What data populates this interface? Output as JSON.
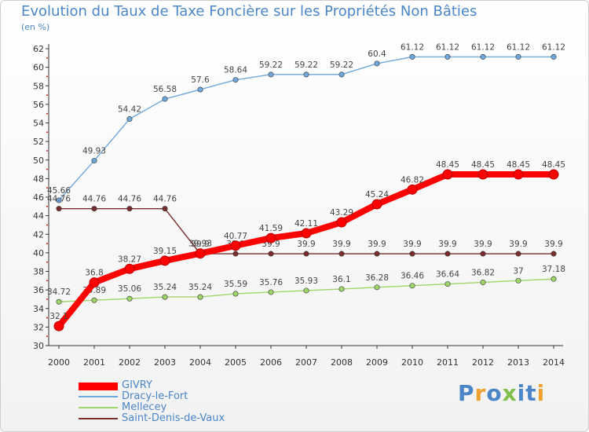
{
  "header": {
    "title": "Evolution du Taux de Taxe Foncière sur les Propriétés Non Bâties",
    "unit": "(en %)"
  },
  "logo": {
    "text": "Proxiti"
  },
  "chart_data": {
    "type": "line",
    "title": "Evolution du Taux de Taxe Foncière sur les Propriétés Non Bâties",
    "ylabel": "(en %)",
    "xlabel": "",
    "x": [
      "2000",
      "2001",
      "2002",
      "2003",
      "2004",
      "2005",
      "2006",
      "2007",
      "2008",
      "2009",
      "2010",
      "2011",
      "2012",
      "2013",
      "2014"
    ],
    "ylim": [
      30,
      62
    ],
    "yticks": [
      30,
      32,
      34,
      36,
      38,
      40,
      42,
      44,
      46,
      48,
      50,
      52,
      54,
      56,
      58,
      60,
      62
    ],
    "grid": false,
    "legend_position": "bottom-left",
    "series": [
      {
        "name": "GIVRY",
        "color": "#ff0000",
        "values": [
          32.1,
          36.8,
          38.27,
          39.15,
          39.93,
          40.77,
          41.59,
          42.11,
          43.29,
          45.24,
          46.82,
          48.45,
          48.45,
          48.45,
          48.45
        ],
        "labels": [
          "32.1",
          "36.8",
          "38.27",
          "39.15",
          "39.93",
          "40.77",
          "41.59",
          "42.11",
          "43.29",
          "45.24",
          "46.82",
          "48.45",
          "48.45",
          "48.45",
          "48.45"
        ]
      },
      {
        "name": "Dracy-le-Fort",
        "color": "#6fa8dc",
        "values": [
          45.66,
          49.93,
          54.42,
          56.58,
          57.6,
          58.64,
          59.22,
          59.22,
          59.22,
          60.4,
          61.12,
          61.12,
          61.12,
          61.12,
          61.12
        ],
        "labels": [
          "45.66",
          "49.93",
          "54.42",
          "56.58",
          "57.6",
          "58.64",
          "59.22",
          "59.22",
          "59.22",
          "60.4",
          "61.12",
          "61.12",
          "61.12",
          "61.12",
          "61.12"
        ]
      },
      {
        "name": "Mellecey",
        "color": "#9fd66a",
        "values": [
          34.72,
          34.89,
          35.06,
          35.24,
          35.24,
          35.59,
          35.76,
          35.93,
          36.1,
          36.28,
          36.46,
          36.64,
          36.82,
          37,
          37.18
        ],
        "labels": [
          "34.72",
          "34.89",
          "35.06",
          "35.24",
          "35.24",
          "35.59",
          "35.76",
          "35.93",
          "36.1",
          "36.28",
          "36.46",
          "36.64",
          "36.82",
          "37",
          "37.18"
        ]
      },
      {
        "name": "Saint-Denis-de-Vaux",
        "color": "#7b2d2d",
        "values": [
          44.76,
          44.76,
          44.76,
          44.76,
          39.9,
          39.9,
          39.9,
          39.9,
          39.9,
          39.9,
          39.9,
          39.9,
          39.9,
          39.9,
          39.9
        ],
        "labels": [
          "44.76",
          "44.76",
          "44.76",
          "44.76",
          "39.9",
          "39.9",
          "39.9",
          "39.9",
          "39.9",
          "39.9",
          "39.9",
          "39.9",
          "39.9",
          "39.9",
          "39.9"
        ]
      }
    ]
  }
}
